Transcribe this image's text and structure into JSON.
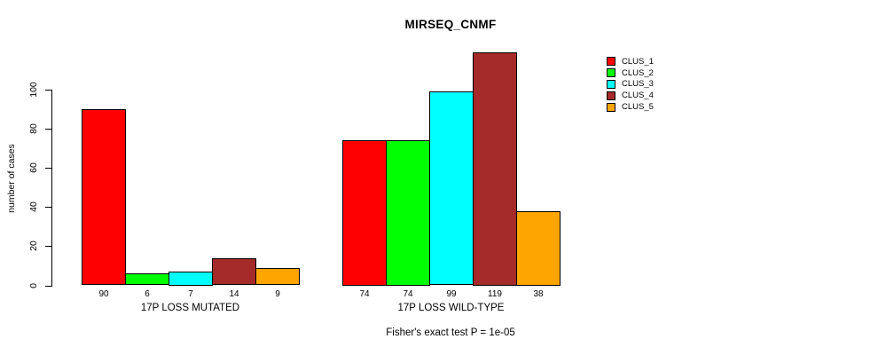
{
  "title": "MIRSEQ_CNMF",
  "footer": "Fisher's exact test P = 1e-05",
  "chart_data": {
    "type": "bar",
    "title": "MIRSEQ_CNMF",
    "xlabel": "",
    "ylabel": "number of cases",
    "categories": [
      "17P LOSS MUTATED",
      "17P LOSS WILD-TYPE"
    ],
    "series": [
      {
        "name": "CLUS_1",
        "color": "#ff0000",
        "values": [
          90,
          74
        ]
      },
      {
        "name": "CLUS_2",
        "color": "#00ff00",
        "values": [
          6,
          74
        ]
      },
      {
        "name": "CLUS_3",
        "color": "#00ffff",
        "values": [
          7,
          99
        ]
      },
      {
        "name": "CLUS_4",
        "color": "#a52a2a",
        "values": [
          14,
          119
        ]
      },
      {
        "name": "CLUS_5",
        "color": "#ffa500",
        "values": [
          9,
          38
        ]
      }
    ],
    "bar_value_labels": {
      "17P LOSS MUTATED": [
        90,
        6,
        7,
        14,
        9
      ],
      "17P LOSS WILD-TYPE": [
        74,
        74,
        99,
        119,
        38
      ]
    },
    "yticks": [
      0,
      20,
      40,
      60,
      80,
      100
    ],
    "ylim": [
      0,
      120
    ],
    "grid": false,
    "legend_position": "right",
    "annotation": "Fisher's exact test P = 1e-05"
  }
}
